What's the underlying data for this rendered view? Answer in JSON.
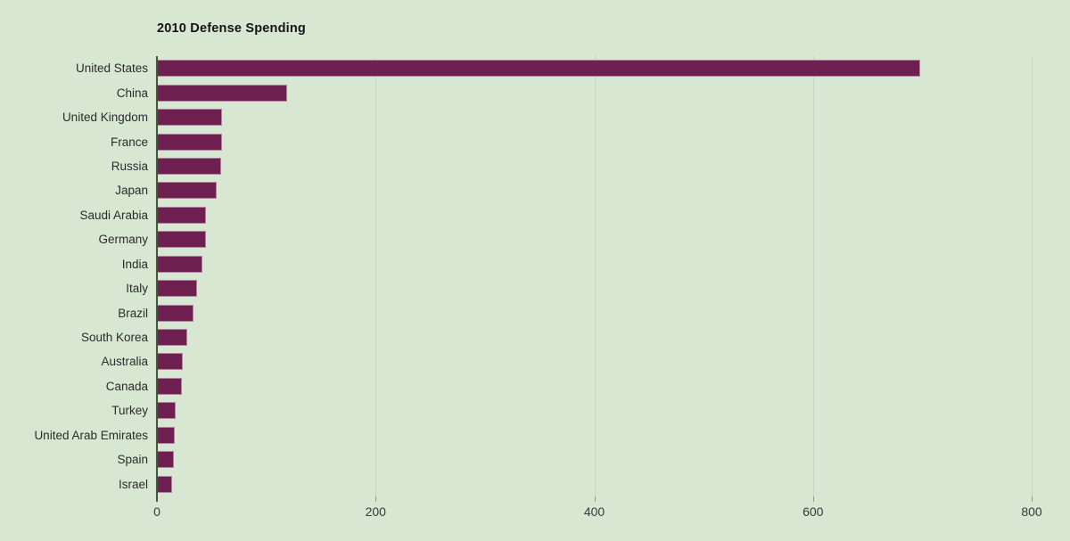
{
  "chart_data": {
    "type": "bar",
    "orientation": "horizontal",
    "title": "2010 Defense Spending",
    "categories": [
      "United States",
      "China",
      "United Kingdom",
      "France",
      "Russia",
      "Japan",
      "Saudi Arabia",
      "Germany",
      "India",
      "Italy",
      "Brazil",
      "South Korea",
      "Australia",
      "Canada",
      "Turkey",
      "United Arab Emirates",
      "Spain",
      "Israel"
    ],
    "values": [
      698,
      119,
      59.6,
      59.3,
      58.7,
      54.5,
      45.2,
      45.2,
      41.3,
      37,
      33.5,
      27.6,
      24,
      22.8,
      17.5,
      16.1,
      15.4,
      13.5
    ],
    "xlabel": "",
    "ylabel": "",
    "xlim": [
      0,
      800
    ],
    "xticks": [
      0,
      200,
      400,
      600,
      800
    ],
    "grid": "vertical-major-only",
    "legend": "none",
    "colors": {
      "background": "#d8e7d2",
      "bar": "#6e2050",
      "bar_edge": "#ffffff",
      "axis_line": "#46543f",
      "gridline": "#c9d5c6",
      "title_text": "#141414",
      "label_text": "#2b2b2b",
      "tick_text": "#3a3a3a"
    }
  }
}
